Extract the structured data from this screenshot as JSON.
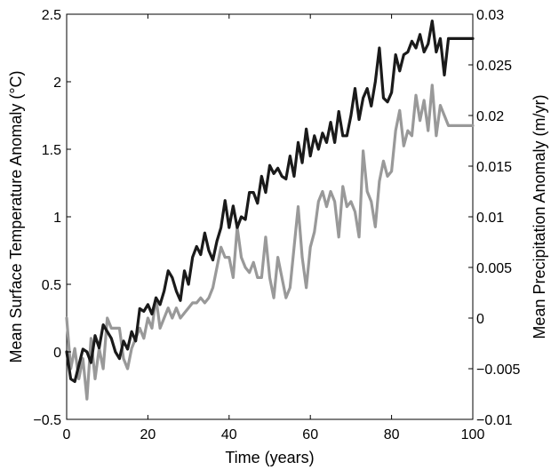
{
  "chart_data": {
    "type": "line",
    "xlabel": "Time (years)",
    "ylabel": "Mean Surface Temperature Anomaly  (°C)",
    "y2label": "Mean Precipitation Anomaly (m/yr)",
    "xlim": [
      0,
      100
    ],
    "ylim": [
      -0.5,
      2.5
    ],
    "y2lim": [
      -0.01,
      0.03
    ],
    "grid": false,
    "x_ticks": [
      0,
      20,
      40,
      60,
      80,
      100
    ],
    "x_tick_labels": [
      "0",
      "20",
      "40",
      "60",
      "80",
      "100"
    ],
    "y_ticks": [
      -0.5,
      0,
      0.5,
      1,
      1.5,
      2,
      2.5
    ],
    "y_tick_labels": [
      "−0.5",
      "0",
      "0.5",
      "1",
      "1.5",
      "2",
      "2.5"
    ],
    "y2_ticks": [
      -0.01,
      -0.005,
      0,
      0.005,
      0.01,
      0.015,
      0.02,
      0.025,
      0.03
    ],
    "y2_tick_labels": [
      "−0.01",
      "−0.005",
      "0",
      "0.005",
      "0.01",
      "0.015",
      "0.02",
      "0.025",
      "0.03"
    ],
    "series": [
      {
        "axis": "left",
        "color": "#1a1a1a",
        "x": [
          0,
          1,
          2,
          3,
          4,
          5,
          6,
          7,
          8,
          9,
          10,
          11,
          12,
          13,
          14,
          15,
          16,
          17,
          18,
          19,
          20,
          21,
          22,
          23,
          24,
          25,
          26,
          27,
          28,
          29,
          30,
          31,
          32,
          33,
          34,
          35,
          36,
          37,
          38,
          39,
          40,
          41,
          42,
          43,
          44,
          45,
          46,
          47,
          48,
          49,
          50,
          51,
          52,
          53,
          54,
          55,
          56,
          57,
          58,
          59,
          60,
          61,
          62,
          63,
          64,
          65,
          66,
          67,
          68,
          69,
          70,
          71,
          72,
          73,
          74,
          75,
          76,
          77,
          78,
          79,
          80,
          81,
          82,
          83,
          84,
          85,
          86,
          87,
          88,
          89,
          90,
          91,
          92,
          93,
          94,
          95,
          96,
          97,
          98,
          99,
          100
        ],
        "values": [
          0.0,
          -0.2,
          -0.22,
          -0.1,
          0.02,
          0.0,
          -0.08,
          0.12,
          0.03,
          0.2,
          0.15,
          0.1,
          0.0,
          -0.05,
          0.08,
          0.02,
          0.15,
          0.08,
          0.32,
          0.3,
          0.35,
          0.28,
          0.4,
          0.35,
          0.45,
          0.6,
          0.55,
          0.45,
          0.38,
          0.6,
          0.5,
          0.7,
          0.78,
          0.72,
          0.88,
          0.75,
          0.68,
          0.82,
          0.92,
          1.12,
          0.92,
          1.08,
          0.92,
          1.0,
          0.98,
          1.18,
          1.18,
          1.1,
          1.3,
          1.18,
          1.38,
          1.32,
          1.36,
          1.3,
          1.28,
          1.45,
          1.3,
          1.55,
          1.4,
          1.65,
          1.45,
          1.6,
          1.5,
          1.62,
          1.55,
          1.7,
          1.55,
          1.78,
          1.6,
          1.6,
          1.75,
          1.95,
          1.72,
          1.88,
          1.95,
          1.82,
          2.0,
          2.25,
          1.88,
          1.85,
          1.92,
          2.2,
          2.08,
          2.2,
          2.22,
          2.3,
          2.25,
          2.35,
          2.22,
          2.28,
          2.45,
          2.22,
          2.32,
          2.05,
          2.32,
          2.32,
          2.32,
          2.32,
          2.32,
          2.32,
          2.32
        ]
      },
      {
        "axis": "right",
        "color": "#999999",
        "x": [
          0,
          1,
          2,
          3,
          4,
          5,
          6,
          7,
          8,
          9,
          10,
          11,
          12,
          13,
          14,
          15,
          16,
          17,
          18,
          19,
          20,
          21,
          22,
          23,
          24,
          25,
          26,
          27,
          28,
          29,
          30,
          31,
          32,
          33,
          34,
          35,
          36,
          37,
          38,
          39,
          40,
          41,
          42,
          43,
          44,
          45,
          46,
          47,
          48,
          49,
          50,
          51,
          52,
          53,
          54,
          55,
          56,
          57,
          58,
          59,
          60,
          61,
          62,
          63,
          64,
          65,
          66,
          67,
          68,
          69,
          70,
          71,
          72,
          73,
          74,
          75,
          76,
          77,
          78,
          79,
          80,
          81,
          82,
          83,
          84,
          85,
          86,
          87,
          88,
          89,
          90,
          91,
          92,
          93,
          94,
          95,
          96,
          97,
          98,
          99,
          100
        ],
        "values": [
          0.0,
          -0.005,
          -0.003,
          -0.006,
          -0.004,
          -0.008,
          -0.002,
          -0.006,
          -0.003,
          -0.005,
          0.0,
          -0.001,
          -0.001,
          -0.001,
          -0.004,
          -0.005,
          -0.003,
          -0.002,
          -0.001,
          -0.002,
          0.0,
          -0.001,
          0.002,
          -0.001,
          0.0,
          0.001,
          0.0,
          0.001,
          0.0,
          0.0005,
          0.001,
          0.0015,
          0.0015,
          0.002,
          0.0015,
          0.002,
          0.003,
          0.005,
          0.007,
          0.006,
          0.006,
          0.004,
          0.009,
          0.006,
          0.005,
          0.0045,
          0.0055,
          0.004,
          0.004,
          0.008,
          0.004,
          0.002,
          0.006,
          0.004,
          0.002,
          0.003,
          0.007,
          0.011,
          0.006,
          0.003,
          0.007,
          0.0085,
          0.0115,
          0.0125,
          0.011,
          0.0125,
          0.0115,
          0.008,
          0.013,
          0.011,
          0.0115,
          0.0105,
          0.008,
          0.0165,
          0.0125,
          0.0115,
          0.009,
          0.0135,
          0.0155,
          0.014,
          0.0145,
          0.0185,
          0.0205,
          0.017,
          0.0185,
          0.018,
          0.022,
          0.0195,
          0.0215,
          0.0185,
          0.023,
          0.018,
          0.021,
          0.02,
          0.019,
          0.019,
          0.019,
          0.019,
          0.019,
          0.019,
          0.019
        ]
      }
    ]
  }
}
